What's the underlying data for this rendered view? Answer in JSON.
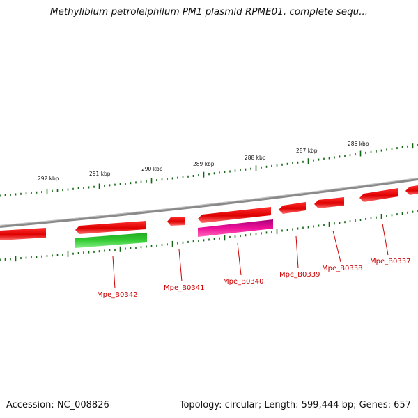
{
  "title": "Methylibium petroleiphilum PM1 plasmid RPME01, complete sequ...",
  "footer": {
    "accession": "Accession: NC_008826",
    "summary": "Topology: circular; Length: 599,444 bp; Genes: 657"
  },
  "scale_labels": [
    "292 kbp",
    "291 kbp",
    "290 kbp",
    "289 kbp",
    "288 kbp",
    "287 kbp",
    "286 kbp"
  ],
  "gene_labels": [
    "Mpe_B0342",
    "Mpe_B0341",
    "Mpe_B0340",
    "Mpe_B0339",
    "Mpe_B0338",
    "Mpe_B0337"
  ],
  "colors": {
    "gene": "#ee0000",
    "rna_green": "#33bb33",
    "rna_magenta": "#dd1188",
    "backbone": "#888888",
    "tick": "#116611",
    "label": "#cc0000"
  }
}
